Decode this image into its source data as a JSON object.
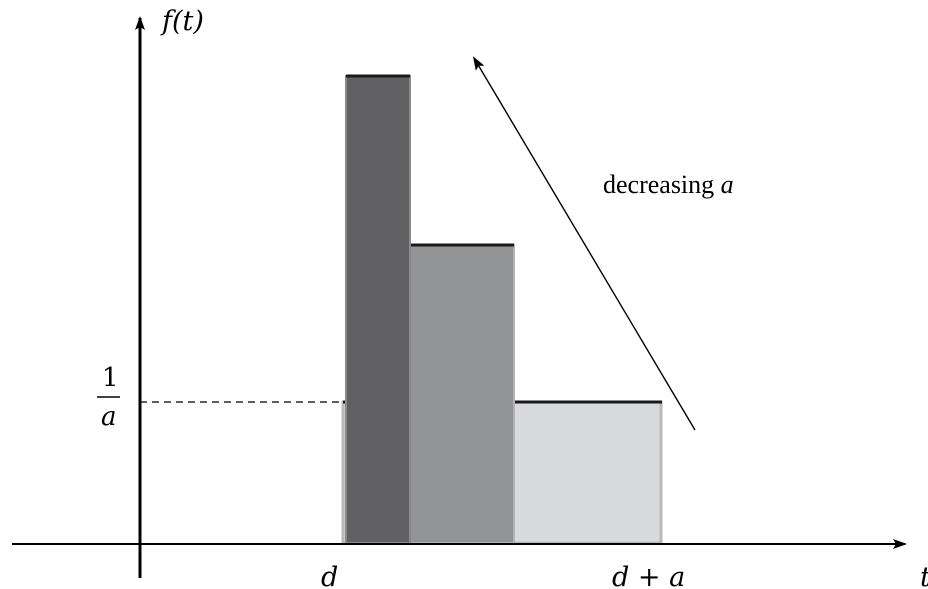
{
  "axes": {
    "y_label": "f(t)",
    "x_label": "t"
  },
  "ticks": {
    "x_d": "d",
    "x_d_plus_a": "d + a",
    "y_frac_num": "1",
    "y_frac_den": "a"
  },
  "annotation": {
    "text_plain": "decreasing ",
    "text_var": "a"
  },
  "colors": {
    "tallest_bar": "#616163",
    "middle_bar": "#929395",
    "widest_bar": "#d9dadb",
    "bar_outline": "#b9b9bb",
    "top_edge": "#1a1a1a"
  }
}
